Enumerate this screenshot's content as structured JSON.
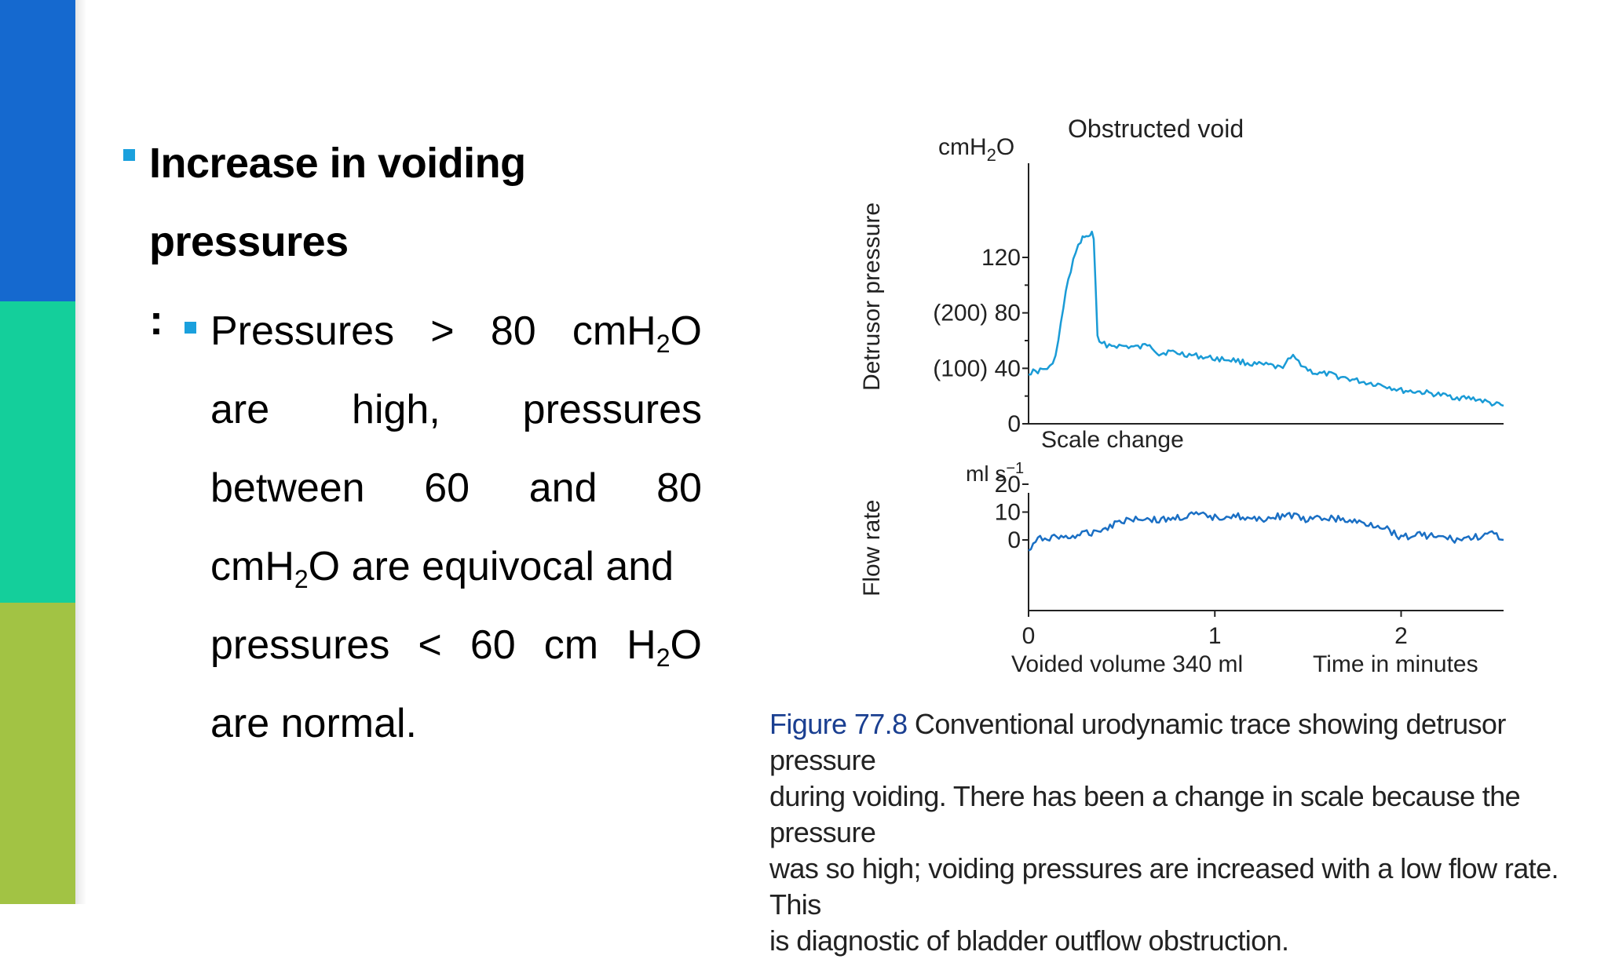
{
  "colors": {
    "stripe_top": "#1569cf",
    "stripe_middle": "#14cf9b",
    "stripe_bottom": "#a2c344",
    "bullet": "#1aa0dd",
    "trace": "#1a9bd6",
    "trace_flow": "#1a6fc4",
    "figure_label": "#1a3f91"
  },
  "bullets": {
    "main": {
      "line1": "Increase in voiding pressures",
      "line2": ":"
    },
    "sub": {
      "l1": [
        "Pressures",
        ">",
        "80",
        "cmH",
        "2",
        "O"
      ],
      "l2": [
        "are",
        "high,",
        "pressures"
      ],
      "l3": [
        "between",
        "60",
        "and",
        "80"
      ],
      "l4_pre": "cmH",
      "l4_sub": "2",
      "l4_post": "O are equivocal and",
      "l5": [
        "pressures",
        "<",
        "60",
        "cm",
        "H",
        "2",
        "O"
      ],
      "l6": "are normal."
    }
  },
  "chart_data": [
    {
      "type": "line",
      "title": "Obstructed void",
      "ylabel": "Detrusor pressure",
      "yunit_pre": "cmH",
      "yunit_sub": "2",
      "yunit_post": "O",
      "ylim": [
        0,
        140
      ],
      "yticks": [
        "0",
        "(100) 40",
        "(200) 80",
        "120"
      ],
      "ytick_values": [
        0,
        40,
        80,
        120
      ],
      "annotation": "Scale change",
      "series": [
        {
          "x": [
            0,
            0.05,
            0.1,
            0.13,
            0.16,
            0.2,
            0.24,
            0.28,
            0.3,
            0.32,
            0.34,
            0.35,
            0.36,
            0.37,
            0.38,
            0.42,
            0.5,
            0.6,
            0.65,
            0.7,
            0.75,
            0.8,
            0.9,
            1.0,
            1.1,
            1.2,
            1.3,
            1.35,
            1.38,
            1.42,
            1.45,
            1.5,
            1.55,
            1.6,
            1.7,
            1.8,
            1.9,
            2.0,
            2.1,
            2.2,
            2.3,
            2.4,
            2.5,
            2.55
          ],
          "y": [
            37,
            38,
            40,
            42,
            60,
            95,
            118,
            132,
            136,
            134,
            138,
            134,
            100,
            62,
            58,
            57,
            56,
            55,
            58,
            50,
            52,
            51,
            49,
            47,
            46,
            43,
            42,
            40,
            44,
            48,
            45,
            39,
            36,
            36,
            33,
            30,
            28,
            24,
            23,
            21,
            19,
            18,
            14,
            13
          ]
        }
      ]
    },
    {
      "type": "line",
      "ylabel": "Flow rate",
      "yunit_pre": "ml s",
      "yunit_sup": "−1",
      "ylim": [
        -22,
        22
      ],
      "yticks": [
        "0",
        "10",
        "20"
      ],
      "ytick_values": [
        0,
        10,
        20
      ],
      "xlim": [
        0,
        2.55
      ],
      "xticks": [
        "0",
        "1",
        "2"
      ],
      "xtick_values": [
        0,
        1,
        2
      ],
      "xlabel_left": "Voided volume 340 ml",
      "xlabel_right": "Time in minutes",
      "series": [
        {
          "x": [
            0,
            0.05,
            0.1,
            0.2,
            0.3,
            0.4,
            0.5,
            0.6,
            0.7,
            0.8,
            0.9,
            1.0,
            1.1,
            1.2,
            1.3,
            1.4,
            1.5,
            1.6,
            1.7,
            1.8,
            1.9,
            2.0,
            2.1,
            2.2,
            2.3,
            2.4,
            2.5,
            2.55
          ],
          "y": [
            -4,
            0,
            1,
            1,
            2,
            4,
            7,
            8,
            7,
            8,
            9,
            8,
            9,
            7,
            8,
            9,
            7,
            8,
            7,
            6,
            5,
            1,
            2,
            1,
            0,
            1,
            2,
            0
          ]
        }
      ]
    }
  ],
  "caption": {
    "label": "Figure 77.8",
    "line1": " Conventional urodynamic trace showing detrusor pressure",
    "line2": "during voiding. There has been a change in scale because the pressure",
    "line3": "was so high; voiding pressures are increased with a low flow rate. This",
    "line4": "is diagnostic of bladder outflow obstruction."
  }
}
